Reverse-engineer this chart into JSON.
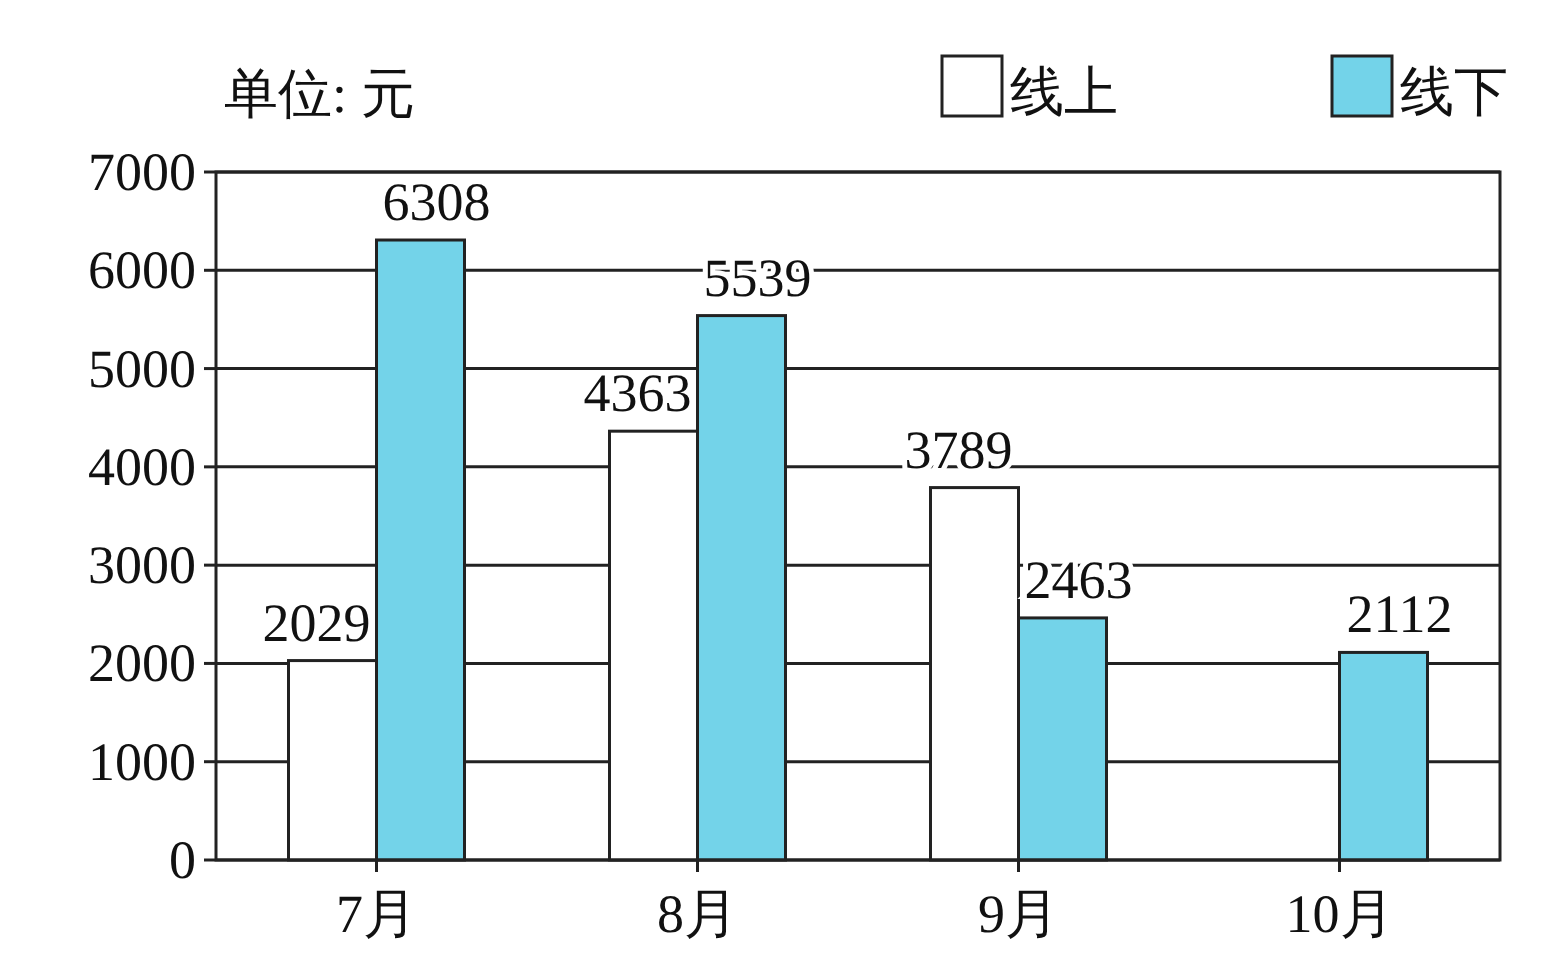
{
  "chart_data": {
    "type": "bar",
    "ylabel": "单位: 元",
    "categories": [
      "7月",
      "8月",
      "9月",
      "10月"
    ],
    "series": [
      {
        "name": "线上",
        "color": "#ffffff",
        "values": [
          2029,
          4363,
          3789,
          null
        ]
      },
      {
        "name": "线下",
        "color": "#73d3e9",
        "values": [
          6308,
          5539,
          2463,
          2112
        ]
      }
    ],
    "ylim": [
      0,
      7000
    ],
    "yticks": [
      0,
      1000,
      2000,
      3000,
      4000,
      5000,
      6000,
      7000
    ],
    "grid": "y",
    "legend": "top right",
    "data_labels": true
  }
}
